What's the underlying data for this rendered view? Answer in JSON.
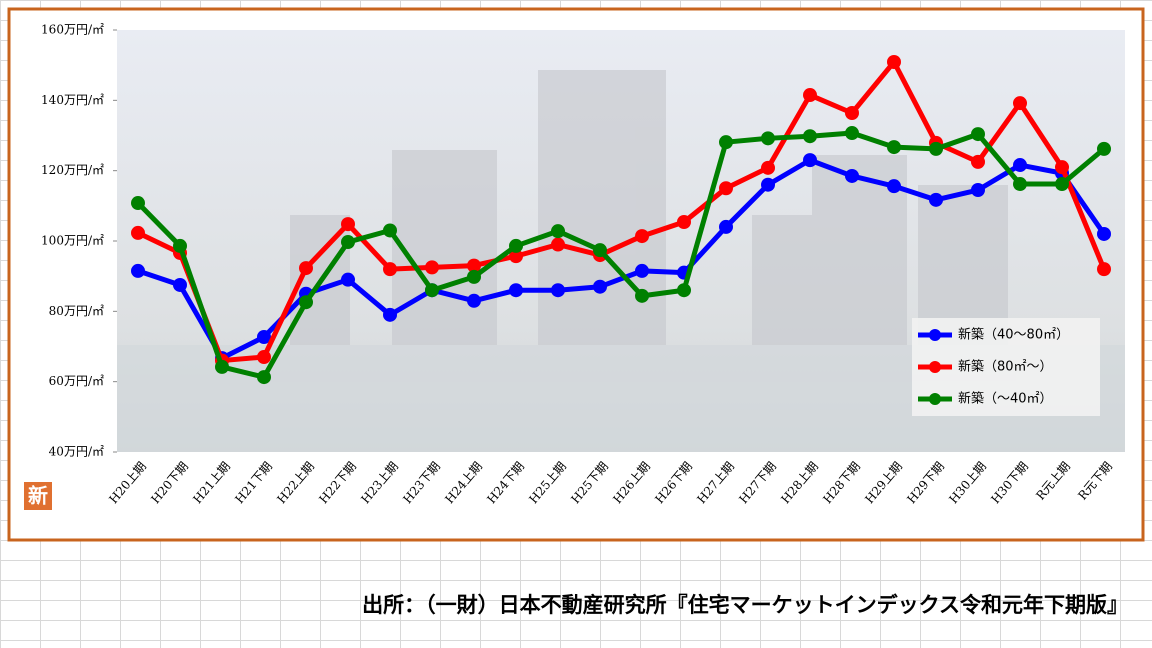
{
  "chart_data": {
    "type": "line",
    "categories": [
      "H20上期",
      "H20下期",
      "H21上期",
      "H21下期",
      "H22上期",
      "H22下期",
      "H23上期",
      "H23下期",
      "H24上期",
      "H24下期",
      "H25上期",
      "H25下期",
      "H26上期",
      "H26下期",
      "H27上期",
      "H27下期",
      "H28上期",
      "H28下期",
      "H29上期",
      "H29下期",
      "H30上期",
      "H30下期",
      "R元上期",
      "R元下期"
    ],
    "series": [
      {
        "name": "新築（40～80㎡）",
        "color": "#0000ff",
        "values": [
          91.5,
          87.5,
          66.7,
          72.7,
          85,
          89,
          79,
          86,
          83,
          86,
          86,
          87,
          91.5,
          91,
          104,
          116,
          123,
          118.5,
          115.6,
          111.7,
          114.5,
          121.6,
          119.3,
          102
        ]
      },
      {
        "name": "新築（80㎡～）",
        "color": "#ff0000",
        "values": [
          102.3,
          96.6,
          66,
          67,
          92.3,
          104.8,
          92,
          92.5,
          93,
          95.7,
          99,
          96,
          101.4,
          105.4,
          115,
          120.8,
          141.5,
          136.4,
          150.9,
          127.9,
          122.5,
          139.2,
          121,
          92
        ]
      },
      {
        "name": "新築（～40㎡）",
        "color": "#008000",
        "values": [
          110.8,
          98.6,
          64.2,
          61.3,
          82.6,
          99.7,
          103,
          86,
          89.8,
          98.6,
          102.8,
          97.4,
          84.4,
          86,
          128.1,
          129.2,
          129.8,
          130.7,
          126.7,
          126.2,
          130.4,
          116.2,
          116.2,
          126.2
        ]
      }
    ],
    "ylim": [
      40,
      160
    ],
    "yticks": [
      {
        "value": 40,
        "label": "40万円/㎡"
      },
      {
        "value": 60,
        "label": "60万円/㎡"
      },
      {
        "value": 80,
        "label": "80万円/㎡"
      },
      {
        "value": 100,
        "label": "100万円/㎡"
      },
      {
        "value": 120,
        "label": "120万円/㎡"
      },
      {
        "value": 140,
        "label": "140万円/㎡"
      },
      {
        "value": 160,
        "label": "160万円/㎡"
      }
    ],
    "legend": "lower right",
    "badge": "新",
    "source": "出所：（一財）日本不動産研究所『住宅マーケットインデックス令和元年下期版』"
  }
}
